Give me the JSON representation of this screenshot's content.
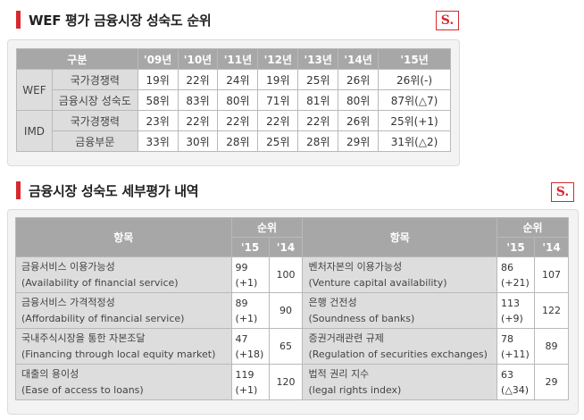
{
  "section1": {
    "title": "WEF 평가 금융시장 성숙도 순위",
    "logo": "S."
  },
  "table1": {
    "header_label": "구분",
    "years": [
      "'09년",
      "'10년",
      "'11년",
      "'12년",
      "'13년",
      "'14년",
      "'15년"
    ],
    "groups": [
      {
        "name": "WEF",
        "rows": [
          {
            "label": "국가경쟁력",
            "values": [
              "19위",
              "22위",
              "24위",
              "19위",
              "25위",
              "26위",
              "26위(-)"
            ]
          },
          {
            "label": "금융시장 성숙도",
            "values": [
              "58위",
              "83위",
              "80위",
              "71위",
              "81위",
              "80위",
              "87위(△7)"
            ]
          }
        ]
      },
      {
        "name": "IMD",
        "rows": [
          {
            "label": "국가경쟁력",
            "values": [
              "23위",
              "22위",
              "22위",
              "22위",
              "22위",
              "26위",
              "25위(+1)"
            ]
          },
          {
            "label": "금융부문",
            "values": [
              "33위",
              "30위",
              "28위",
              "25위",
              "28위",
              "29위",
              "31위(△2)"
            ]
          }
        ]
      }
    ]
  },
  "section2": {
    "title": "금융시장 성숙도 세부평가 내역",
    "logo": "S."
  },
  "table2": {
    "header_item": "항목",
    "header_rank": "순위",
    "col_15": "'15",
    "col_14": "'14",
    "left": [
      {
        "ko": "금융서비스 이용가능성",
        "en": "(Availability of financial service)",
        "r15": "99",
        "r15c": "(+1)",
        "r14": "100"
      },
      {
        "ko": "금융서비스 가격적정성",
        "en": "(Affordability of financial service)",
        "r15": "89",
        "r15c": "(+1)",
        "r14": "90"
      },
      {
        "ko": "국내주식시장을 통한 자본조달",
        "en": "(Financing through local equity market)",
        "r15": "47",
        "r15c": "(+18)",
        "r14": "65"
      },
      {
        "ko": "대출의 용이성",
        "en": "(Ease of access to loans)",
        "r15": "119",
        "r15c": "(+1)",
        "r14": "120"
      }
    ],
    "right": [
      {
        "ko": "벤처자본의 이용가능성",
        "en": "(Venture capital availability)",
        "r15": "86",
        "r15c": "(+21)",
        "r14": "107"
      },
      {
        "ko": "은행 건전성",
        "en": "(Soundness of banks)",
        "r15": "113",
        "r15c": "(+9)",
        "r14": "122"
      },
      {
        "ko": "증권거래관련 규제",
        "en": "(Regulation of securities exchanges)",
        "r15": "78",
        "r15c": "(+11)",
        "r14": "89"
      },
      {
        "ko": "법적 권리 지수",
        "en": "(legal rights index)",
        "r15": "63",
        "r15c": "(△34)",
        "r14": "29"
      }
    ]
  }
}
